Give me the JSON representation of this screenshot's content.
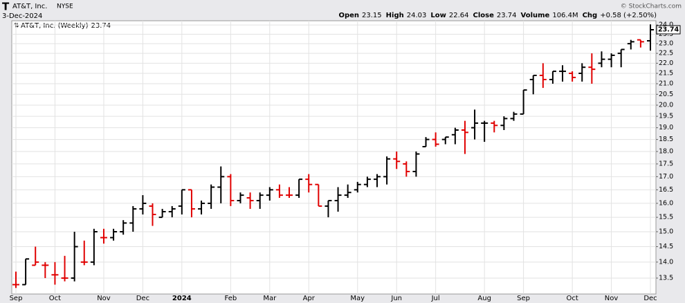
{
  "chart_data": {
    "type": "ohlc",
    "symbol": "T",
    "title": "AT&T, Inc.",
    "exchange": "NYSE",
    "date": "3-Dec-2024",
    "header": {
      "open_label": "Open",
      "high_label": "High",
      "low_label": "Low",
      "close_label": "Close",
      "volume_label": "Volume",
      "volume": "106.4M",
      "chg_label": "Chg",
      "chg": "+0.58 (+2.50%)"
    },
    "copyright": "© StockCharts.com",
    "categories": [
      "Sep",
      null,
      null,
      null,
      "Oct",
      null,
      null,
      null,
      null,
      "Nov",
      null,
      null,
      null,
      "Dec",
      null,
      null,
      null,
      "2024",
      null,
      null,
      null,
      null,
      "Feb",
      null,
      null,
      null,
      "Mar",
      null,
      null,
      null,
      "Apr",
      null,
      null,
      null,
      null,
      "May",
      null,
      null,
      null,
      "Jun",
      null,
      null,
      null,
      "Jul",
      null,
      null,
      null,
      null,
      "Aug",
      null,
      null,
      null,
      "Sep",
      null,
      null,
      null,
      null,
      "Oct",
      null,
      null,
      null,
      "Nov",
      null,
      null,
      null,
      "Dec"
    ],
    "series": [
      {
        "name": "AT&T, Inc. (Weekly)",
        "open": [
          13.3,
          13.3,
          13.9,
          13.9,
          13.6,
          13.5,
          13.5,
          14.0,
          14.0,
          14.8,
          14.8,
          15.0,
          15.3,
          15.8,
          15.9,
          15.5,
          15.7,
          15.9,
          16.5,
          15.8,
          16.0,
          16.6,
          17.0,
          16.1,
          16.2,
          16.1,
          16.3,
          16.5,
          16.3,
          16.3,
          16.9,
          16.7,
          15.9,
          16.1,
          16.3,
          16.5,
          16.7,
          16.9,
          17.0,
          17.7,
          17.5,
          17.2,
          18.2,
          18.5,
          18.5,
          18.7,
          18.9,
          19.0,
          19.2,
          19.2,
          19.1,
          19.4,
          19.6,
          21.2,
          21.4,
          21.2,
          21.6,
          21.5,
          21.5,
          21.8,
          22.0,
          22.2,
          22.5,
          23.0,
          23.2,
          23.15
        ],
        "high": [
          13.7,
          14.1,
          14.5,
          14.0,
          14.0,
          14.2,
          15.0,
          14.7,
          15.1,
          15.1,
          15.1,
          15.4,
          15.9,
          16.3,
          16.0,
          15.8,
          15.9,
          16.5,
          16.5,
          16.1,
          16.7,
          17.4,
          17.1,
          16.4,
          16.4,
          16.4,
          16.6,
          16.7,
          16.6,
          16.9,
          17.1,
          16.7,
          16.1,
          16.6,
          16.7,
          16.8,
          17.0,
          17.1,
          17.8,
          18.0,
          17.6,
          18.0,
          18.6,
          18.8,
          18.6,
          19.0,
          19.3,
          19.8,
          19.3,
          19.3,
          19.5,
          19.7,
          20.7,
          21.4,
          22.0,
          21.6,
          21.9,
          21.6,
          22.0,
          22.5,
          22.6,
          22.5,
          22.7,
          23.2,
          23.2,
          24.03
        ],
        "low": [
          13.2,
          13.3,
          13.9,
          13.5,
          13.3,
          13.4,
          13.4,
          13.9,
          13.9,
          14.6,
          14.7,
          14.9,
          15.0,
          15.6,
          15.2,
          15.5,
          15.5,
          15.6,
          15.5,
          15.6,
          15.8,
          16.0,
          15.9,
          16.0,
          15.8,
          15.8,
          16.1,
          16.2,
          16.2,
          16.2,
          16.4,
          15.9,
          15.5,
          15.7,
          16.2,
          16.4,
          16.6,
          16.6,
          16.7,
          17.3,
          17.0,
          17.0,
          18.2,
          18.2,
          18.3,
          18.3,
          17.9,
          18.5,
          18.4,
          18.8,
          18.9,
          19.3,
          19.6,
          20.5,
          20.8,
          21.0,
          21.1,
          21.1,
          21.1,
          21.0,
          21.8,
          21.8,
          21.8,
          22.7,
          22.8,
          22.64
        ],
        "close": [
          13.3,
          14.1,
          14.0,
          13.9,
          13.6,
          13.5,
          14.5,
          14.0,
          15.0,
          14.8,
          15.0,
          15.3,
          15.8,
          16.0,
          15.6,
          15.7,
          15.8,
          16.5,
          15.8,
          16.0,
          16.6,
          17.0,
          16.1,
          16.3,
          16.1,
          16.3,
          16.5,
          16.3,
          16.3,
          16.9,
          16.7,
          15.9,
          16.1,
          16.3,
          16.4,
          16.7,
          16.9,
          17.0,
          17.7,
          17.6,
          17.2,
          17.9,
          18.5,
          18.3,
          18.6,
          18.9,
          18.8,
          19.2,
          19.2,
          19.1,
          19.4,
          19.6,
          20.7,
          21.4,
          21.2,
          21.6,
          21.6,
          21.3,
          21.8,
          21.7,
          22.2,
          22.4,
          22.7,
          23.1,
          23.1,
          23.74
        ],
        "colors": [
          "#e00000",
          "#000000",
          "#e00000",
          "#e00000",
          "#e00000",
          "#e00000",
          "#000000",
          "#e00000",
          "#000000",
          "#e00000",
          "#000000",
          "#000000",
          "#000000",
          "#000000",
          "#e00000",
          "#000000",
          "#000000",
          "#000000",
          "#e00000",
          "#000000",
          "#000000",
          "#000000",
          "#e00000",
          "#000000",
          "#e00000",
          "#000000",
          "#000000",
          "#e00000",
          "#e00000",
          "#000000",
          "#e00000",
          "#e00000",
          "#000000",
          "#000000",
          "#000000",
          "#000000",
          "#000000",
          "#000000",
          "#000000",
          "#e00000",
          "#e00000",
          "#000000",
          "#000000",
          "#e00000",
          "#000000",
          "#000000",
          "#e00000",
          "#000000",
          "#000000",
          "#e00000",
          "#000000",
          "#000000",
          "#000000",
          "#000000",
          "#e00000",
          "#000000",
          "#000000",
          "#e00000",
          "#000000",
          "#e00000",
          "#000000",
          "#000000",
          "#000000",
          "#000000",
          "#e00000",
          "#000000"
        ]
      }
    ],
    "ylim": [
      13.02,
      24.23
    ],
    "log_scale": true,
    "grid": true,
    "yticks": [
      {
        "value": 13.5,
        "label": "13.5"
      },
      {
        "value": 14,
        "label": "14.0"
      },
      {
        "value": 14.5,
        "label": "14.5"
      },
      {
        "value": 15,
        "label": "15.0"
      },
      {
        "value": 15.5,
        "label": "15.5"
      },
      {
        "value": 16,
        "label": "16.0"
      },
      {
        "value": 16.5,
        "label": "16.5"
      },
      {
        "value": 17,
        "label": "17.0"
      },
      {
        "value": 17.5,
        "label": "17.5"
      },
      {
        "value": 18,
        "label": "18.0"
      },
      {
        "value": 18.5,
        "label": "18.5"
      },
      {
        "value": 19,
        "label": "19.0"
      },
      {
        "value": 19.5,
        "label": "19.5"
      },
      {
        "value": 20,
        "label": "20.0"
      },
      {
        "value": 20.5,
        "label": "20.5"
      },
      {
        "value": 21,
        "label": "21.0"
      },
      {
        "value": 21.5,
        "label": "21.5"
      },
      {
        "value": 22,
        "label": "22.0"
      },
      {
        "value": 22.5,
        "label": "22.5"
      },
      {
        "value": 23,
        "label": "23.0"
      },
      {
        "value": 23.5,
        "label": "23.5"
      },
      {
        "value": 24,
        "label": "24.0"
      }
    ]
  }
}
